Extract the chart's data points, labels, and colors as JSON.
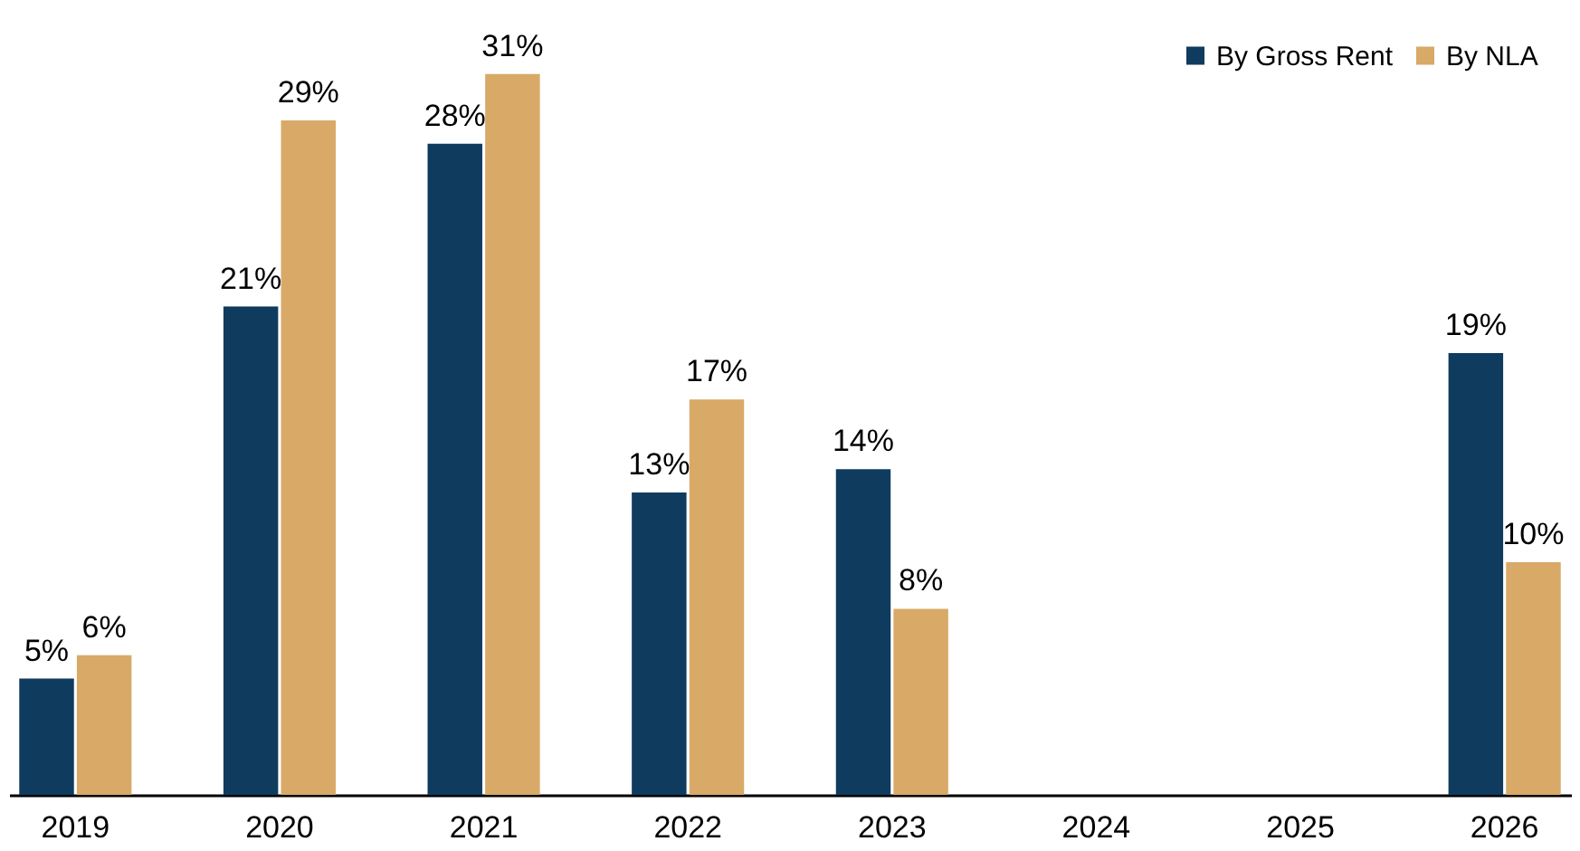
{
  "chart_data": {
    "type": "bar",
    "categories": [
      "2019",
      "2020",
      "2021",
      "2022",
      "2023",
      "2024",
      "2025",
      "2026"
    ],
    "series": [
      {
        "name": "By Gross Rent",
        "color": "#0f3b5f",
        "values": [
          5,
          21,
          28,
          13,
          14,
          null,
          null,
          19
        ],
        "value_labels": [
          "5%",
          "21%",
          "28%",
          "13%",
          "14%",
          null,
          null,
          "19%"
        ]
      },
      {
        "name": "By NLA",
        "color": "#d8a967",
        "values": [
          6,
          29,
          31,
          17,
          8,
          null,
          null,
          10
        ],
        "value_labels": [
          "6%",
          "29%",
          "31%",
          "17%",
          "8%",
          null,
          null,
          "10%"
        ]
      }
    ],
    "legend": "top right",
    "grid": false
  }
}
